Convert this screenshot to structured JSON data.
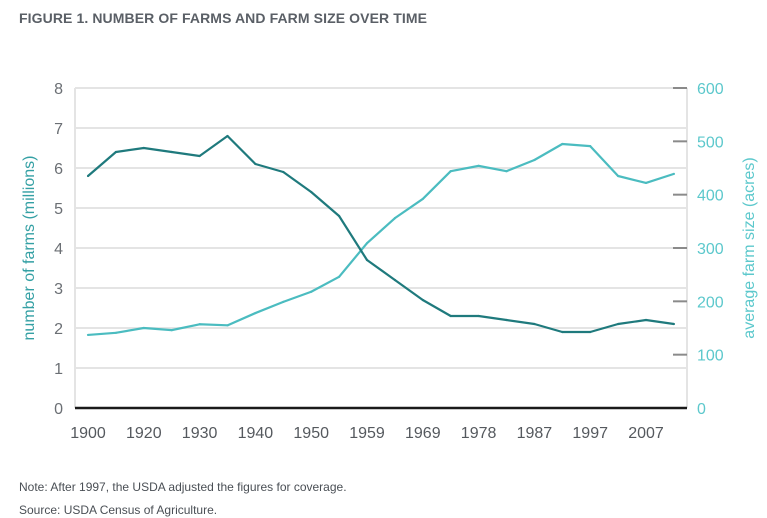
{
  "title": "FIGURE 1. NUMBER OF FARMS AND FARM SIZE OVER TIME",
  "notes": {
    "note": "Note: After 1997, the USDA adjusted the figures for coverage.",
    "source": "Source: USDA Census of Agriculture."
  },
  "colors": {
    "farms_line": "#1f7a7d",
    "size_line": "#4bbcc0",
    "left_axis_title": "#34a0a4",
    "right_axis": "#5cc8cc",
    "grid": "#e4e4e4",
    "baseline": "#1a1a1a"
  },
  "chart_data": {
    "type": "line",
    "title": "FIGURE 1. NUMBER OF FARMS AND FARM SIZE OVER TIME",
    "x": [
      "1900",
      "1910",
      "1920",
      "1925",
      "1930",
      "1935",
      "1940",
      "1945",
      "1950",
      "1954",
      "1959",
      "1964",
      "1969",
      "1974",
      "1978",
      "1982",
      "1987",
      "1992",
      "1997",
      "2002",
      "2007",
      "2012"
    ],
    "x_tick_labels": [
      "1900",
      "",
      "1920",
      "",
      "1930",
      "",
      "1940",
      "",
      "1950",
      "",
      "1959",
      "",
      "1969",
      "",
      "1978",
      "",
      "1987",
      "",
      "1997",
      "",
      "2007",
      ""
    ],
    "xlabel": "",
    "ylabel_left": "number of farms (millions)",
    "ylabel_right": "average farm size (acres)",
    "ylim_left": [
      0,
      8
    ],
    "ylim_right": [
      0,
      600
    ],
    "yticks_left": [
      "0",
      "1",
      "2",
      "3",
      "4",
      "5",
      "6",
      "7",
      "8"
    ],
    "yticks_right": [
      "0",
      "100",
      "200",
      "300",
      "400",
      "500",
      "600"
    ],
    "grid": true,
    "legend": "none",
    "series": [
      {
        "name": "number of farms (millions)",
        "axis": "left",
        "values": [
          5.8,
          6.4,
          6.5,
          6.4,
          6.3,
          6.8,
          6.1,
          5.9,
          5.4,
          4.8,
          3.7,
          3.2,
          2.7,
          2.3,
          2.3,
          2.2,
          2.1,
          1.9,
          1.9,
          2.1,
          2.2,
          2.1
        ]
      },
      {
        "name": "average farm size (acres)",
        "axis": "right",
        "values": [
          137,
          141,
          150,
          146,
          157,
          155,
          178,
          199,
          218,
          246,
          309,
          356,
          392,
          444,
          454,
          444,
          465,
          495,
          491,
          435,
          422,
          439
        ]
      }
    ]
  }
}
